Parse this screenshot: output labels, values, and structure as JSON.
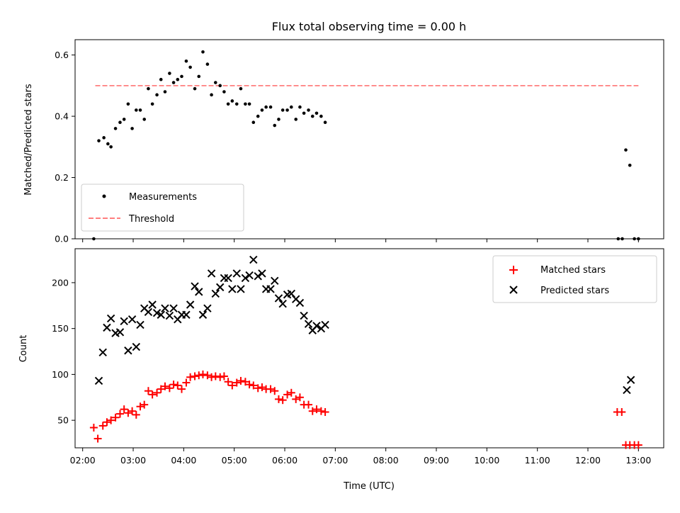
{
  "chart_data": [
    {
      "type": "scatter",
      "title": "Flux total observing time = 0.00 h",
      "xlabel": "",
      "ylabel": "Matched/Predicted stars",
      "xlim_hours": [
        1.85,
        13.5
      ],
      "ylim": [
        0,
        0.65
      ],
      "yticks": [
        0.0,
        0.2,
        0.4,
        0.6
      ],
      "ytick_labels": [
        "0.0",
        "0.2",
        "0.4",
        "0.6"
      ],
      "legend": {
        "position": "lower-left",
        "entries": [
          "Measurements",
          "Threshold"
        ]
      },
      "series": [
        {
          "name": "Measurements",
          "marker": "dot",
          "color": "#000000",
          "points": [
            [
              2.22,
              0.0
            ],
            [
              2.32,
              0.32
            ],
            [
              2.42,
              0.33
            ],
            [
              2.5,
              0.31
            ],
            [
              2.56,
              0.3
            ],
            [
              2.65,
              0.36
            ],
            [
              2.74,
              0.38
            ],
            [
              2.82,
              0.39
            ],
            [
              2.9,
              0.44
            ],
            [
              2.98,
              0.36
            ],
            [
              3.06,
              0.42
            ],
            [
              3.14,
              0.42
            ],
            [
              3.22,
              0.39
            ],
            [
              3.3,
              0.49
            ],
            [
              3.38,
              0.44
            ],
            [
              3.47,
              0.47
            ],
            [
              3.55,
              0.52
            ],
            [
              3.63,
              0.48
            ],
            [
              3.72,
              0.54
            ],
            [
              3.8,
              0.51
            ],
            [
              3.88,
              0.52
            ],
            [
              3.96,
              0.53
            ],
            [
              4.05,
              0.58
            ],
            [
              4.13,
              0.56
            ],
            [
              4.22,
              0.49
            ],
            [
              4.3,
              0.53
            ],
            [
              4.38,
              0.61
            ],
            [
              4.47,
              0.57
            ],
            [
              4.55,
              0.47
            ],
            [
              4.63,
              0.51
            ],
            [
              4.72,
              0.5
            ],
            [
              4.8,
              0.48
            ],
            [
              4.88,
              0.44
            ],
            [
              4.96,
              0.45
            ],
            [
              5.05,
              0.44
            ],
            [
              5.13,
              0.49
            ],
            [
              5.22,
              0.44
            ],
            [
              5.3,
              0.44
            ],
            [
              5.38,
              0.38
            ],
            [
              5.47,
              0.4
            ],
            [
              5.55,
              0.42
            ],
            [
              5.63,
              0.43
            ],
            [
              5.72,
              0.43
            ],
            [
              5.8,
              0.37
            ],
            [
              5.88,
              0.39
            ],
            [
              5.96,
              0.42
            ],
            [
              6.05,
              0.42
            ],
            [
              6.13,
              0.43
            ],
            [
              6.22,
              0.39
            ],
            [
              6.3,
              0.43
            ],
            [
              6.38,
              0.41
            ],
            [
              6.47,
              0.42
            ],
            [
              6.55,
              0.4
            ],
            [
              6.63,
              0.41
            ],
            [
              6.72,
              0.4
            ],
            [
              6.8,
              0.38
            ],
            [
              12.6,
              0.0
            ],
            [
              12.68,
              0.0
            ],
            [
              12.75,
              0.29
            ],
            [
              12.83,
              0.24
            ],
            [
              12.92,
              0.0
            ],
            [
              13.0,
              0.0
            ]
          ]
        },
        {
          "name": "Threshold",
          "style": "dashed",
          "color": "#ff7f7f",
          "points": [
            [
              2.25,
              0.5
            ],
            [
              13.0,
              0.5
            ]
          ]
        }
      ]
    },
    {
      "type": "scatter",
      "title": "",
      "xlabel": "Time (UTC)",
      "ylabel": "Count",
      "xlim_hours": [
        1.85,
        13.5
      ],
      "ylim": [
        20,
        237
      ],
      "yticks": [
        50,
        100,
        150,
        200
      ],
      "ytick_labels": [
        "50",
        "100",
        "150",
        "200"
      ],
      "xticks": [
        2,
        3,
        4,
        5,
        6,
        7,
        8,
        9,
        10,
        11,
        12,
        13
      ],
      "xtick_labels": [
        "02:00",
        "03:00",
        "04:00",
        "05:00",
        "06:00",
        "07:00",
        "08:00",
        "09:00",
        "10:00",
        "11:00",
        "12:00",
        "13:00"
      ],
      "legend": {
        "position": "top-right",
        "entries": [
          "Matched stars",
          "Predicted stars"
        ]
      },
      "series": [
        {
          "name": "Matched stars",
          "marker": "plus",
          "color": "#ff0000",
          "points": [
            [
              2.22,
              42
            ],
            [
              2.3,
              30
            ],
            [
              2.4,
              44
            ],
            [
              2.48,
              48
            ],
            [
              2.56,
              50
            ],
            [
              2.65,
              53
            ],
            [
              2.74,
              57
            ],
            [
              2.82,
              62
            ],
            [
              2.9,
              58
            ],
            [
              2.98,
              60
            ],
            [
              3.06,
              56
            ],
            [
              3.14,
              65
            ],
            [
              3.22,
              67
            ],
            [
              3.3,
              82
            ],
            [
              3.38,
              78
            ],
            [
              3.47,
              80
            ],
            [
              3.55,
              84
            ],
            [
              3.63,
              87
            ],
            [
              3.72,
              85
            ],
            [
              3.8,
              89
            ],
            [
              3.88,
              88
            ],
            [
              3.96,
              84
            ],
            [
              4.05,
              91
            ],
            [
              4.13,
              97
            ],
            [
              4.22,
              98
            ],
            [
              4.3,
              99
            ],
            [
              4.38,
              100
            ],
            [
              4.47,
              99
            ],
            [
              4.55,
              97
            ],
            [
              4.63,
              98
            ],
            [
              4.72,
              97
            ],
            [
              4.8,
              98
            ],
            [
              4.88,
              92
            ],
            [
              4.96,
              88
            ],
            [
              5.05,
              91
            ],
            [
              5.13,
              93
            ],
            [
              5.22,
              92
            ],
            [
              5.3,
              89
            ],
            [
              5.38,
              88
            ],
            [
              5.47,
              85
            ],
            [
              5.55,
              86
            ],
            [
              5.63,
              84
            ],
            [
              5.72,
              84
            ],
            [
              5.8,
              82
            ],
            [
              5.88,
              73
            ],
            [
              5.96,
              72
            ],
            [
              6.05,
              78
            ],
            [
              6.13,
              80
            ],
            [
              6.22,
              73
            ],
            [
              6.3,
              75
            ],
            [
              6.38,
              67
            ],
            [
              6.47,
              67
            ],
            [
              6.55,
              60
            ],
            [
              6.63,
              62
            ],
            [
              6.72,
              60
            ],
            [
              6.8,
              59
            ],
            [
              12.58,
              59
            ],
            [
              12.67,
              59
            ],
            [
              12.75,
              23
            ],
            [
              12.83,
              23
            ],
            [
              12.92,
              23
            ],
            [
              13.0,
              23
            ]
          ]
        },
        {
          "name": "Predicted stars",
          "marker": "x",
          "color": "#000000",
          "points": [
            [
              2.32,
              93
            ],
            [
              2.4,
              124
            ],
            [
              2.48,
              151
            ],
            [
              2.56,
              161
            ],
            [
              2.65,
              145
            ],
            [
              2.74,
              146
            ],
            [
              2.82,
              158
            ],
            [
              2.9,
              126
            ],
            [
              2.98,
              160
            ],
            [
              3.06,
              130
            ],
            [
              3.14,
              154
            ],
            [
              3.22,
              172
            ],
            [
              3.3,
              168
            ],
            [
              3.38,
              176
            ],
            [
              3.47,
              167
            ],
            [
              3.55,
              165
            ],
            [
              3.63,
              172
            ],
            [
              3.72,
              164
            ],
            [
              3.8,
              172
            ],
            [
              3.88,
              160
            ],
            [
              3.96,
              165
            ],
            [
              4.05,
              165
            ],
            [
              4.13,
              176
            ],
            [
              4.22,
              196
            ],
            [
              4.3,
              190
            ],
            [
              4.38,
              165
            ],
            [
              4.47,
              172
            ],
            [
              4.55,
              210
            ],
            [
              4.63,
              188
            ],
            [
              4.72,
              195
            ],
            [
              4.8,
              205
            ],
            [
              4.88,
              205
            ],
            [
              4.96,
              193
            ],
            [
              5.05,
              210
            ],
            [
              5.13,
              193
            ],
            [
              5.22,
              205
            ],
            [
              5.3,
              208
            ],
            [
              5.38,
              225
            ],
            [
              5.47,
              207
            ],
            [
              5.55,
              210
            ],
            [
              5.63,
              193
            ],
            [
              5.72,
              193
            ],
            [
              5.8,
              202
            ],
            [
              5.88,
              183
            ],
            [
              5.96,
              177
            ],
            [
              6.05,
              187
            ],
            [
              6.13,
              188
            ],
            [
              6.22,
              182
            ],
            [
              6.3,
              178
            ],
            [
              6.38,
              164
            ],
            [
              6.47,
              155
            ],
            [
              6.55,
              148
            ],
            [
              6.63,
              153
            ],
            [
              6.72,
              150
            ],
            [
              6.8,
              154
            ],
            [
              12.77,
              83
            ],
            [
              12.85,
              94
            ]
          ]
        }
      ]
    }
  ]
}
